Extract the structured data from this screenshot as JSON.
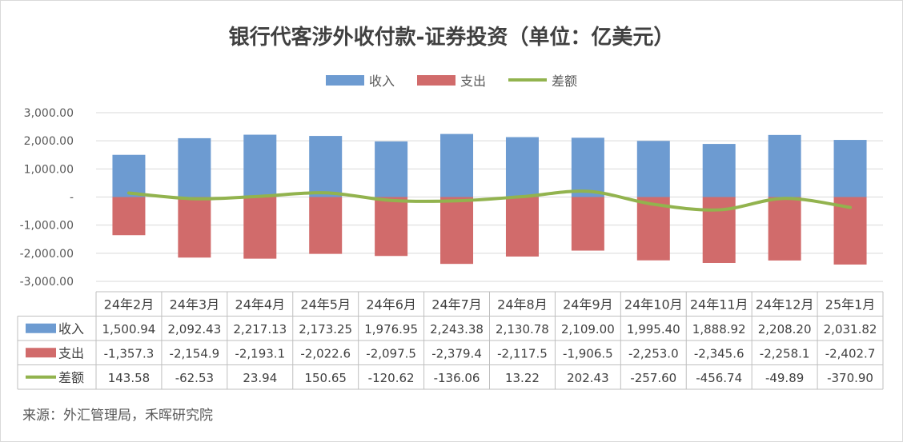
{
  "chart_data": {
    "type": "bar",
    "title": "银行代客涉外收付款-证券投资（单位：亿美元）",
    "categories": [
      "24年2月",
      "24年3月",
      "24年4月",
      "24年5月",
      "24年6月",
      "24年7月",
      "24年8月",
      "24年9月",
      "24年10月",
      "24年11月",
      "24年12月",
      "25年1月"
    ],
    "series": [
      {
        "name": "收入",
        "type": "bar",
        "color": "#6d9bd1",
        "values": [
          1500.94,
          2092.43,
          2217.13,
          2173.25,
          1976.95,
          2243.38,
          2130.78,
          2109.0,
          1995.4,
          1888.92,
          2208.2,
          2031.82
        ],
        "labels": [
          "1,500.94",
          "2,092.43",
          "2,217.13",
          "2,173.25",
          "1,976.95",
          "2,243.38",
          "2,130.78",
          "2,109.00",
          "1,995.40",
          "1,888.92",
          "2,208.20",
          "2,031.82"
        ]
      },
      {
        "name": "支出",
        "type": "bar",
        "color": "#d16b6b",
        "values": [
          -1357.3,
          -2154.9,
          -2193.1,
          -2022.6,
          -2097.5,
          -2379.4,
          -2117.5,
          -1906.5,
          -2253.0,
          -2345.6,
          -2258.1,
          -2402.7
        ],
        "labels": [
          "-1,357.3",
          "-2,154.9",
          "-2,193.1",
          "-2,022.6",
          "-2,097.5",
          "-2,379.4",
          "-2,117.5",
          "-1,906.5",
          "-2,253.0",
          "-2,345.6",
          "-2,258.1",
          "-2,402.7"
        ]
      },
      {
        "name": "差额",
        "type": "line",
        "color": "#92b34e",
        "values": [
          143.58,
          -62.53,
          23.94,
          150.65,
          -120.62,
          -136.06,
          13.22,
          202.43,
          -257.6,
          -456.74,
          -49.89,
          -370.9
        ],
        "labels": [
          "143.58",
          "-62.53",
          "23.94",
          "150.65",
          "-120.62",
          "-136.06",
          "13.22",
          "202.43",
          "-257.60",
          "-456.74",
          "-49.89",
          "-370.90"
        ]
      }
    ],
    "ylim": [
      -3000,
      3000
    ],
    "yticks": [
      3000,
      2000,
      1000,
      0,
      -1000,
      -2000,
      -3000
    ],
    "ytick_labels": [
      "3,000.00",
      "2,000.00",
      "1,000.00",
      "-",
      "-1,000.00",
      "-2,000.00",
      "-3,000.00"
    ],
    "legend_position": "top",
    "grid": true,
    "data_table": true
  },
  "source": "来源：外汇管理局，禾晖研究院"
}
